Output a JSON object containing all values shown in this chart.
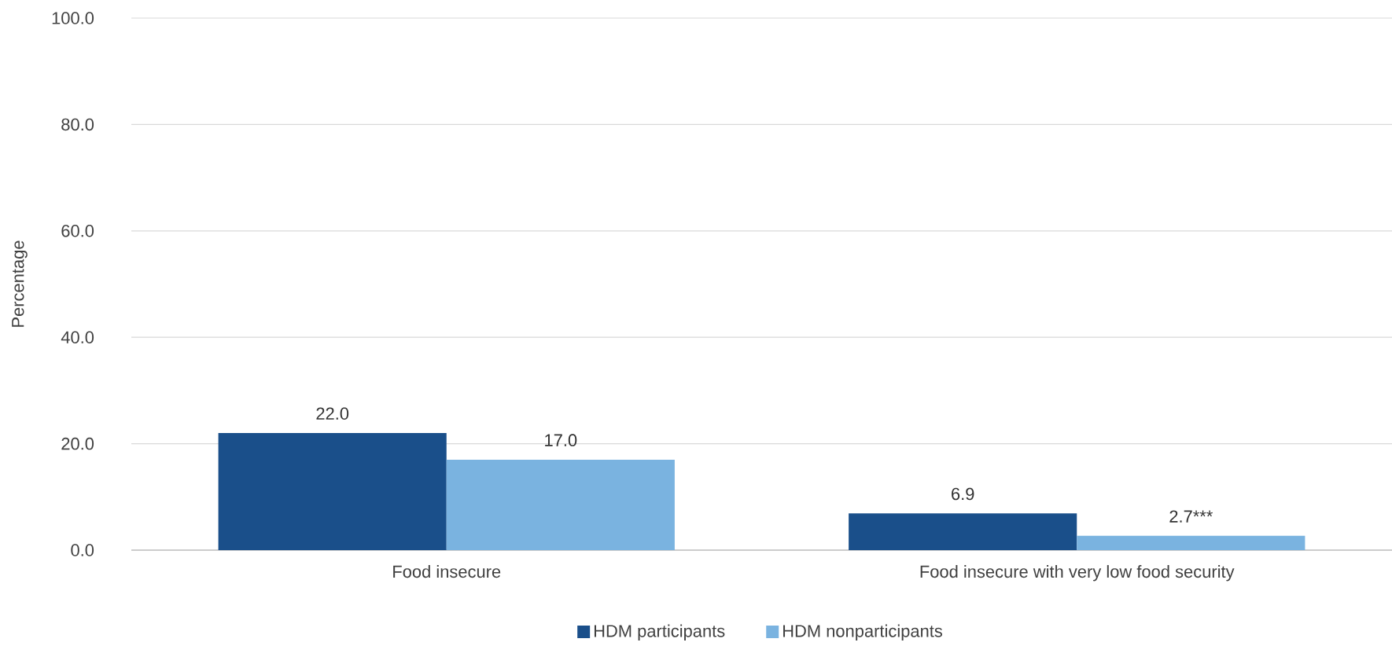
{
  "chart_data": {
    "type": "bar",
    "ylabel": "Percentage",
    "categories": [
      "Food insecure",
      "Food insecure with very low food security"
    ],
    "series": [
      {
        "name": "HDM participants",
        "color": "#1a4f8a",
        "values": [
          22.0,
          6.9
        ],
        "value_labels": [
          "22.0",
          "6.9"
        ]
      },
      {
        "name": "HDM nonparticipants",
        "color": "#7ab3e0",
        "values": [
          17.0,
          2.7
        ],
        "value_labels": [
          "17.0",
          "2.7***"
        ]
      }
    ],
    "ylim": [
      0,
      100
    ],
    "yticks": [
      {
        "value": 0,
        "label": "0.0"
      },
      {
        "value": 20,
        "label": "20.0"
      },
      {
        "value": 40,
        "label": "40.0"
      },
      {
        "value": 60,
        "label": "60.0"
      },
      {
        "value": 80,
        "label": "80.0"
      },
      {
        "value": 100,
        "label": "100.0"
      }
    ],
    "grid": "y",
    "legend": "bottom"
  }
}
